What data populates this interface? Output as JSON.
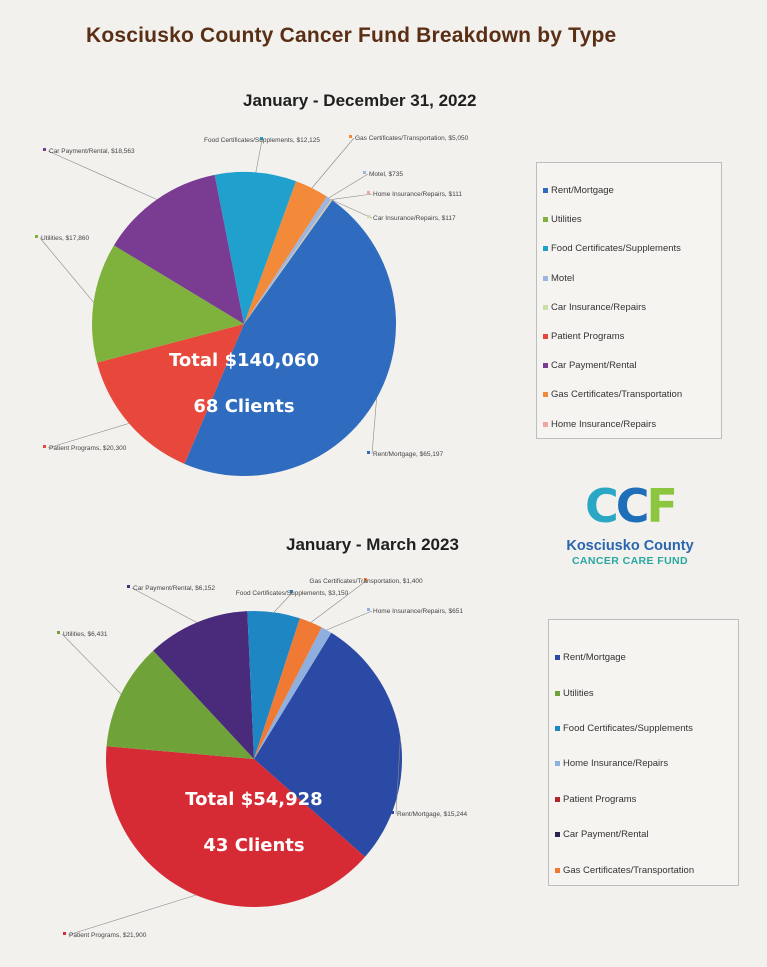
{
  "page": {
    "title": "Kosciusko County Cancer Fund Breakdown by Type"
  },
  "logo": {
    "mark": "CCF",
    "line1": "Kosciusko County",
    "line2": "CANCER CARE FUND"
  },
  "chart_data": [
    {
      "type": "pie",
      "title": "January - December 31, 2022",
      "center_lines": [
        "Total $140,060",
        "68 Clients"
      ],
      "slices": [
        {
          "name": "Rent/Mortgage",
          "label": "Rent/Mortgage, $65,197",
          "value": 65197,
          "color": "#2f6cc0"
        },
        {
          "name": "Patient Programs",
          "label": "Patient Programs, $20,300",
          "value": 20300,
          "color": "#e8473b"
        },
        {
          "name": "Utilities",
          "label": "Utilities, $17,860",
          "value": 17860,
          "color": "#7fb13d"
        },
        {
          "name": "Car Payment/Rental",
          "label": "Car Payment/Rental, $18,563",
          "value": 18563,
          "color": "#7a3b92"
        },
        {
          "name": "Food Certificates/Supplements",
          "label": "Food Certificates/Supplements, $12,125",
          "value": 12125,
          "color": "#1fa0cd"
        },
        {
          "name": "Gas Certificates/Transportation",
          "label": "Gas Certificates/Transportation, $5,050",
          "value": 5050,
          "color": "#f28a3a"
        },
        {
          "name": "Motel",
          "label": "Motel, $735",
          "value": 735,
          "color": "#9bb6e0"
        },
        {
          "name": "Home Insurance/Repairs",
          "label": "Home Insurance/Repairs, $111",
          "value": 111,
          "color": "#f2a6a0"
        },
        {
          "name": "Car Insurance/Repairs",
          "label": "Car Insurance/Repairs, $117",
          "value": 117,
          "color": "#c8e0a6"
        }
      ],
      "legend": [
        {
          "label": "Rent/Mortgage",
          "color": "#2f6cc0"
        },
        {
          "label": "Utilities",
          "color": "#7fb13d"
        },
        {
          "label": "Food Certificates/Supplements",
          "color": "#1fa0cd"
        },
        {
          "label": "Motel",
          "color": "#9bb6e0"
        },
        {
          "label": "Car Insurance/Repairs",
          "color": "#c8e0a6"
        },
        {
          "label": "Patient Programs",
          "color": "#e8473b"
        },
        {
          "label": "Car Payment/Rental",
          "color": "#7a3b92"
        },
        {
          "label": "Gas Certificates/Transportation",
          "color": "#f28a3a"
        },
        {
          "label": "Home Insurance/Repairs",
          "color": "#f2a6a0"
        }
      ]
    },
    {
      "type": "pie",
      "title": "January - March 2023",
      "center_lines": [
        "Total $54,928",
        "43 Clients"
      ],
      "slices": [
        {
          "name": "Rent/Mortgage",
          "label": "Rent/Mortgage, $15,244",
          "value": 15244,
          "color": "#2a4aa6"
        },
        {
          "name": "Patient Programs",
          "label": "Patient Programs, $21,900",
          "value": 21900,
          "color": "#d62b35"
        },
        {
          "name": "Utilities",
          "label": "Utilities, $6,431",
          "value": 6431,
          "color": "#6fa33a"
        },
        {
          "name": "Car Payment/Rental",
          "label": "Car Payment/Rental, $6,152",
          "value": 6152,
          "color": "#4a2a7a"
        },
        {
          "name": "Food Certificates/Supplements",
          "label": "Food Certificates/Supplements, $3,150",
          "value": 3150,
          "color": "#1f86c4"
        },
        {
          "name": "Gas Certificates/Transportation",
          "label": "Gas Certificates/Transportation, $1,400",
          "value": 1400,
          "color": "#f07a34"
        },
        {
          "name": "Home Insurance/Repairs",
          "label": "Home Insurance/Repairs, $651",
          "value": 651,
          "color": "#8fb0de"
        }
      ],
      "legend": [
        {
          "label": "Rent/Mortgage",
          "color": "#2a4aa6"
        },
        {
          "label": "Utilities",
          "color": "#6fa33a"
        },
        {
          "label": "Food Certificates/Supplements",
          "color": "#1f86c4"
        },
        {
          "label": "Home Insurance/Repairs",
          "color": "#8fb0de"
        },
        {
          "label": "Patient Programs",
          "color": "#b0262c"
        },
        {
          "label": "Car Payment/Rental",
          "color": "#2d2452"
        },
        {
          "label": "Gas Certificates/Transportation",
          "color": "#f07a34"
        }
      ]
    }
  ]
}
